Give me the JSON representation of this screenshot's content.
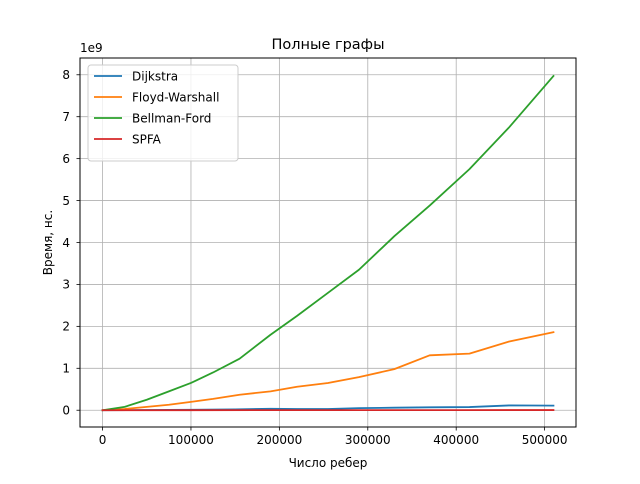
{
  "chart_data": {
    "type": "line",
    "title": "Полные графы",
    "xlabel": "Число ребер",
    "ylabel": "Время, нс.",
    "y_offset_label": "1e9",
    "xlim": [
      -25500,
      535500
    ],
    "ylim": [
      -400000000.0,
      8400000000.0
    ],
    "x_ticks": [
      0,
      100000,
      200000,
      300000,
      400000,
      500000
    ],
    "x_tick_labels": [
      "0",
      "100000",
      "200000",
      "300000",
      "400000",
      "500000"
    ],
    "y_ticks": [
      0,
      1000000000.0,
      2000000000.0,
      3000000000.0,
      4000000000.0,
      5000000000.0,
      6000000000.0,
      7000000000.0,
      8000000000.0
    ],
    "y_tick_labels": [
      "0",
      "1",
      "2",
      "3",
      "4",
      "5",
      "6",
      "7",
      "8"
    ],
    "grid": true,
    "legend_position": "upper-left",
    "series": [
      {
        "name": "Dijkstra",
        "color": "#1f77b4",
        "points": [
          [
            0,
            0
          ],
          [
            50000,
            5000000
          ],
          [
            100000,
            10000000
          ],
          [
            150000,
            20000000
          ],
          [
            190000,
            35000000
          ],
          [
            220000,
            30000000
          ],
          [
            255000,
            30000000
          ],
          [
            290000,
            50000000
          ],
          [
            330000,
            60000000
          ],
          [
            370000,
            70000000
          ],
          [
            415000,
            75000000
          ],
          [
            460000,
            115000000
          ],
          [
            510000,
            110000000
          ]
        ]
      },
      {
        "name": "Floyd-Warshall",
        "color": "#ff7f0e",
        "points": [
          [
            0,
            0
          ],
          [
            25000,
            30000000
          ],
          [
            50000,
            80000000
          ],
          [
            75000,
            130000000
          ],
          [
            100000,
            200000000
          ],
          [
            125000,
            270000000
          ],
          [
            155000,
            370000000
          ],
          [
            190000,
            450000000
          ],
          [
            220000,
            560000000
          ],
          [
            255000,
            650000000
          ],
          [
            290000,
            790000000
          ],
          [
            330000,
            980000000
          ],
          [
            370000,
            1310000000
          ],
          [
            415000,
            1350000000
          ],
          [
            460000,
            1640000000
          ],
          [
            510000,
            1860000000
          ]
        ]
      },
      {
        "name": "Bellman-Ford",
        "color": "#2ca02c",
        "points": [
          [
            0,
            0
          ],
          [
            25000,
            80000000
          ],
          [
            50000,
            250000000
          ],
          [
            75000,
            450000000
          ],
          [
            100000,
            650000000
          ],
          [
            125000,
            900000000
          ],
          [
            155000,
            1230000000
          ],
          [
            190000,
            1800000000
          ],
          [
            220000,
            2250000000
          ],
          [
            255000,
            2800000000
          ],
          [
            290000,
            3350000000
          ],
          [
            330000,
            4150000000
          ],
          [
            370000,
            4880000000
          ],
          [
            415000,
            5750000000
          ],
          [
            460000,
            6750000000
          ],
          [
            510000,
            7970000000
          ]
        ]
      },
      {
        "name": "SPFA",
        "color": "#d62728",
        "points": [
          [
            0,
            0
          ],
          [
            100000,
            1000000
          ],
          [
            200000,
            2000000
          ],
          [
            300000,
            2000000
          ],
          [
            400000,
            3000000
          ],
          [
            510000,
            4000000
          ]
        ]
      }
    ]
  }
}
